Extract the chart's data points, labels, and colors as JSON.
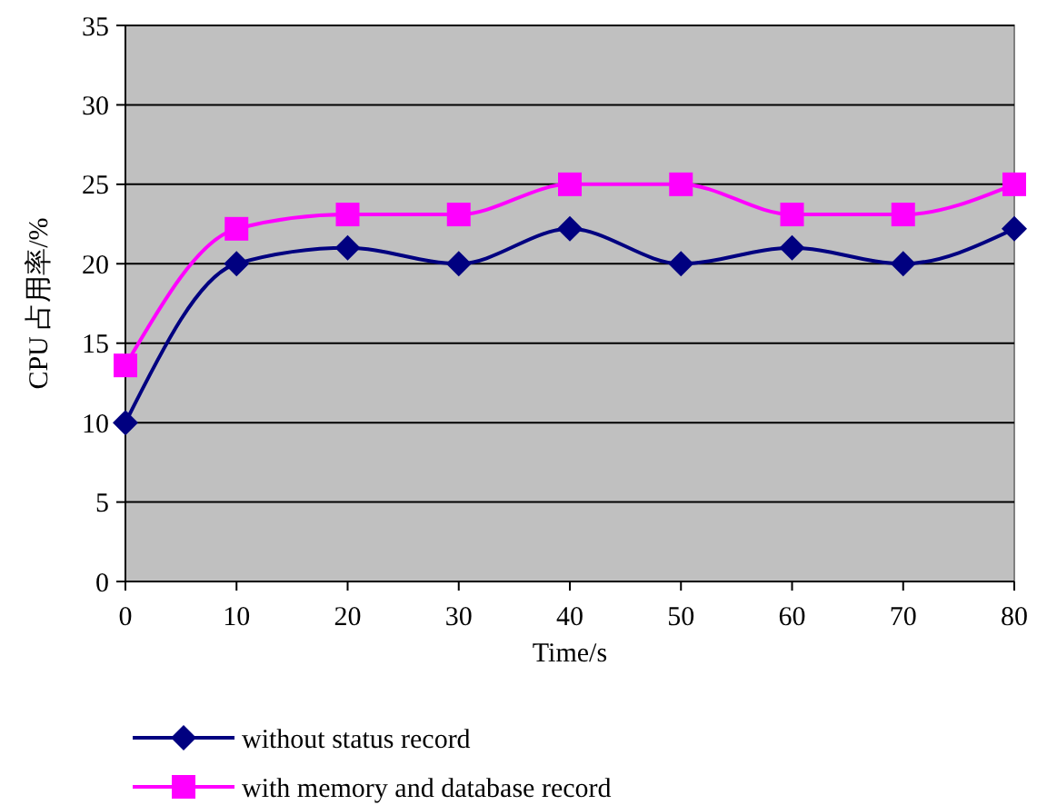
{
  "chart_data": {
    "type": "line",
    "xlabel": "Time/s",
    "ylabel": "CPU 占用率/%",
    "x": [
      0,
      10,
      20,
      30,
      40,
      50,
      60,
      70,
      80
    ],
    "xlim": [
      0,
      80
    ],
    "xticks": [
      0,
      10,
      20,
      30,
      40,
      50,
      60,
      70,
      80
    ],
    "ylim": [
      0,
      35
    ],
    "yticks": [
      0,
      5,
      10,
      15,
      20,
      25,
      30,
      35
    ],
    "grid": "y",
    "legend": "bottom",
    "line_style": "solid",
    "series": [
      {
        "name": "without status record",
        "color": "#000080",
        "marker": "diamond",
        "values": [
          10,
          20,
          21,
          20,
          22.2,
          20,
          21,
          20,
          22.2
        ]
      },
      {
        "name": "with memory and database record",
        "color": "#ff00ff",
        "marker": "square",
        "values": [
          13.6,
          22.2,
          23.1,
          23.1,
          25,
          25,
          23.1,
          23.1,
          25
        ]
      }
    ]
  }
}
